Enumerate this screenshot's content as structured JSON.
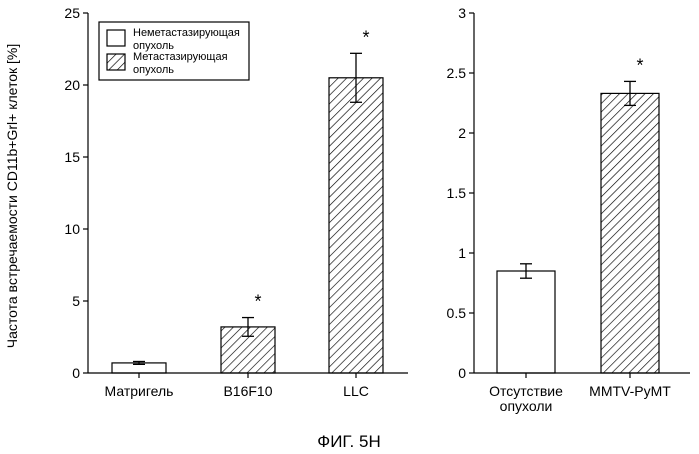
{
  "chart_data": [
    {
      "type": "bar",
      "ylabel": "Частота встречаемости CD11b+Grl+ клеток [%]",
      "ylim": [
        0,
        25
      ],
      "yticks": [
        "0",
        "5",
        "10",
        "15",
        "20",
        "25"
      ],
      "categories": [
        "Матригель",
        "B16F10",
        "LLC"
      ],
      "values": [
        0.7,
        3.2,
        20.5
      ],
      "errors": [
        0.1,
        0.65,
        1.7
      ],
      "bar_style": [
        "open",
        "hatched",
        "hatched"
      ],
      "annotations": [
        "",
        "*",
        "*"
      ],
      "legend": {
        "position": "top-left",
        "items": [
          {
            "style": "open",
            "lines": [
              "Неметастазирующая",
              "опухоль"
            ]
          },
          {
            "style": "hatched",
            "lines": [
              "Метастазирующая",
              "опухоль"
            ]
          }
        ]
      }
    },
    {
      "type": "bar",
      "ylim": [
        0,
        3
      ],
      "yticks": [
        "0",
        "0.5",
        "1",
        "1.5",
        "2",
        "2.5",
        "3"
      ],
      "categories": [
        [
          "Отсутствие",
          "опухоли"
        ],
        [
          "MMTV-PyMT"
        ]
      ],
      "values": [
        0.85,
        2.33
      ],
      "errors": [
        0.06,
        0.1
      ],
      "bar_style": [
        "open",
        "hatched"
      ],
      "annotations": [
        "",
        "*"
      ]
    }
  ],
  "caption": "ФИГ. 5H"
}
